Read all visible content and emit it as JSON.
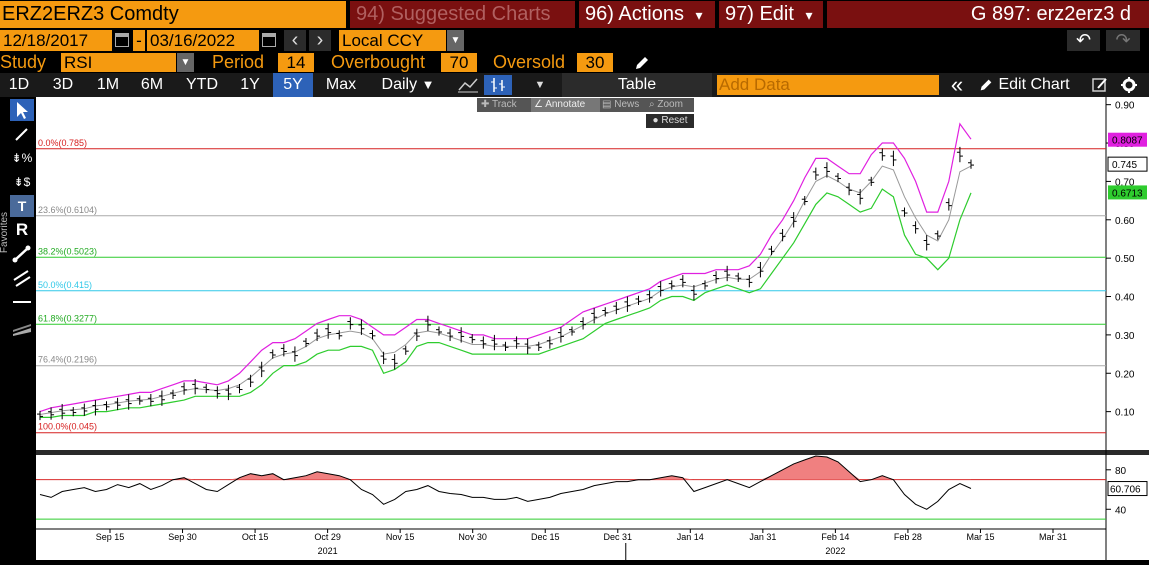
{
  "header": {
    "ticker": "ERZ2ERZ3 Comdty",
    "suggested_charts": "94) Suggested Charts",
    "actions": "96) Actions",
    "edit": "97) Edit",
    "page_code": "G 897: erz2erz3 d",
    "actions_arrow": "▾",
    "edit_arrow": "▾"
  },
  "range": {
    "start_date": "12/18/2017",
    "end_date": "03/16/2022",
    "dash": "-",
    "currency": "Local CCY",
    "prev": "‹",
    "next": "›",
    "undo": "↶",
    "redo": "↷"
  },
  "study": {
    "label": "Study",
    "name": "RSI",
    "period_label": "Period",
    "period": "14",
    "overbought_label": "Overbought",
    "overbought": "70",
    "oversold_label": "Oversold",
    "oversold": "30"
  },
  "toolbar": {
    "timeframes": [
      "1D",
      "3D",
      "1M",
      "6M",
      "YTD",
      "1Y",
      "5Y",
      "Max"
    ],
    "selected_timeframe": "5Y",
    "frequency": "Daily",
    "table": "Table",
    "add_data_placeholder": "Add Data",
    "collapse": "«",
    "edit_chart": "Edit Chart"
  },
  "chart_tools": {
    "track": "Track",
    "annotate": "Annotate",
    "news": "News",
    "zoom": "Zoom",
    "reset": "Reset"
  },
  "left_tools": {
    "favorites_label": "Favorites"
  },
  "colors": {
    "orange": "#f59a10",
    "dark_red": "#7a1010",
    "selected_blue": "#2d62b8",
    "upper_band": "#e020e0",
    "lower_band": "#2ecc2e",
    "middle_band": "#999999",
    "fib_red": "#d62020",
    "fib_gray": "#aaaaaa",
    "fib_green": "#2ecc2e",
    "fib_cyan": "#30c8e8",
    "rsi_fill": "#f08080"
  },
  "chart_data": {
    "type": "line",
    "title": "",
    "x_tick_labels": [
      "Sep 15",
      "Sep 30",
      "Oct 15",
      "Oct 29",
      "Nov 15",
      "Nov 30",
      "Dec 15",
      "Dec 31",
      "Jan 14",
      "Jan 31",
      "Feb 14",
      "Feb 28",
      "Mar 15",
      "Mar 31"
    ],
    "year_labels": [
      {
        "label": "2021",
        "at": "Oct 29"
      },
      {
        "label": "2022",
        "at": "Feb 14"
      }
    ],
    "price_axis": {
      "ylim": [
        0.0,
        0.92
      ],
      "ticks": [
        0.1,
        0.2,
        0.3,
        0.4,
        0.5,
        0.6,
        0.7,
        0.8,
        0.9
      ],
      "tick_labels": [
        "0.10",
        "0.20",
        "0.30",
        "0.40",
        "0.50",
        "0.60",
        "0.70",
        "0.80",
        "0.90"
      ]
    },
    "fibonacci_levels": [
      {
        "label": "0.0%(0.785)",
        "value": 0.785
      },
      {
        "label": "23.6%(0.6104)",
        "value": 0.6104
      },
      {
        "label": "38.2%(0.5023)",
        "value": 0.5023
      },
      {
        "label": "50.0%(0.415)",
        "value": 0.415
      },
      {
        "label": "61.8%(0.3277)",
        "value": 0.3277
      },
      {
        "label": "76.4%(0.2196)",
        "value": 0.2196
      },
      {
        "label": "100.0%(0.045)",
        "value": 0.045
      }
    ],
    "last_values": [
      {
        "label": "0.8087",
        "series": "upper",
        "value": 0.8087
      },
      {
        "label": "0.745",
        "series": "price",
        "value": 0.745
      },
      {
        "label": "0.6713",
        "series": "lower",
        "value": 0.6713
      }
    ],
    "price_close": [
      0.09,
      0.095,
      0.1,
      0.1,
      0.105,
      0.11,
      0.115,
      0.12,
      0.125,
      0.13,
      0.13,
      0.135,
      0.145,
      0.16,
      0.165,
      0.16,
      0.15,
      0.15,
      0.16,
      0.18,
      0.21,
      0.25,
      0.26,
      0.25,
      0.28,
      0.3,
      0.31,
      0.3,
      0.33,
      0.32,
      0.3,
      0.24,
      0.23,
      0.26,
      0.3,
      0.33,
      0.31,
      0.3,
      0.3,
      0.29,
      0.28,
      0.28,
      0.27,
      0.28,
      0.27,
      0.27,
      0.28,
      0.3,
      0.31,
      0.33,
      0.35,
      0.36,
      0.37,
      0.38,
      0.39,
      0.4,
      0.42,
      0.43,
      0.44,
      0.41,
      0.43,
      0.45,
      0.46,
      0.45,
      0.44,
      0.47,
      0.52,
      0.56,
      0.6,
      0.65,
      0.72,
      0.73,
      0.71,
      0.68,
      0.66,
      0.7,
      0.77,
      0.76,
      0.62,
      0.58,
      0.54,
      0.56,
      0.64,
      0.77,
      0.745
    ],
    "upper_band": [
      0.1,
      0.11,
      0.115,
      0.12,
      0.125,
      0.13,
      0.135,
      0.14,
      0.145,
      0.15,
      0.15,
      0.16,
      0.17,
      0.18,
      0.18,
      0.175,
      0.17,
      0.18,
      0.2,
      0.23,
      0.26,
      0.28,
      0.28,
      0.29,
      0.31,
      0.33,
      0.34,
      0.35,
      0.35,
      0.34,
      0.32,
      0.3,
      0.3,
      0.32,
      0.34,
      0.34,
      0.33,
      0.32,
      0.31,
      0.3,
      0.3,
      0.29,
      0.29,
      0.29,
      0.29,
      0.3,
      0.31,
      0.32,
      0.34,
      0.36,
      0.37,
      0.38,
      0.39,
      0.4,
      0.41,
      0.42,
      0.44,
      0.45,
      0.46,
      0.46,
      0.46,
      0.47,
      0.47,
      0.47,
      0.48,
      0.51,
      0.56,
      0.6,
      0.65,
      0.71,
      0.76,
      0.76,
      0.74,
      0.72,
      0.72,
      0.77,
      0.8,
      0.8,
      0.76,
      0.7,
      0.62,
      0.62,
      0.7,
      0.85,
      0.81
    ],
    "lower_band": [
      0.085,
      0.085,
      0.09,
      0.09,
      0.09,
      0.1,
      0.1,
      0.105,
      0.11,
      0.11,
      0.115,
      0.12,
      0.125,
      0.13,
      0.14,
      0.14,
      0.14,
      0.14,
      0.14,
      0.15,
      0.17,
      0.2,
      0.22,
      0.22,
      0.23,
      0.25,
      0.26,
      0.26,
      0.27,
      0.27,
      0.26,
      0.2,
      0.21,
      0.23,
      0.27,
      0.28,
      0.28,
      0.27,
      0.26,
      0.25,
      0.25,
      0.25,
      0.25,
      0.25,
      0.25,
      0.25,
      0.26,
      0.27,
      0.28,
      0.29,
      0.31,
      0.33,
      0.34,
      0.35,
      0.36,
      0.37,
      0.39,
      0.4,
      0.4,
      0.39,
      0.41,
      0.42,
      0.43,
      0.42,
      0.41,
      0.42,
      0.46,
      0.5,
      0.54,
      0.59,
      0.64,
      0.67,
      0.66,
      0.64,
      0.62,
      0.63,
      0.68,
      0.66,
      0.56,
      0.51,
      0.5,
      0.47,
      0.5,
      0.6,
      0.67
    ],
    "rsi_axis": {
      "ylim": [
        20,
        95
      ],
      "ticks": [
        40,
        80
      ],
      "tick_labels": [
        "40",
        "80"
      ],
      "overbought": 70,
      "oversold": 30,
      "last_label": "60.706"
    },
    "rsi": [
      55,
      52,
      58,
      60,
      62,
      58,
      60,
      65,
      62,
      66,
      60,
      64,
      70,
      72,
      66,
      60,
      58,
      65,
      72,
      76,
      74,
      76,
      70,
      72,
      74,
      78,
      76,
      74,
      70,
      60,
      55,
      45,
      50,
      58,
      60,
      64,
      58,
      56,
      55,
      52,
      52,
      50,
      50,
      52,
      48,
      50,
      52,
      56,
      58,
      60,
      64,
      66,
      68,
      68,
      70,
      70,
      72,
      74,
      72,
      58,
      62,
      66,
      70,
      66,
      62,
      68,
      74,
      80,
      86,
      90,
      94,
      93,
      88,
      78,
      68,
      70,
      74,
      70,
      55,
      45,
      40,
      48,
      60,
      66,
      61
    ]
  }
}
